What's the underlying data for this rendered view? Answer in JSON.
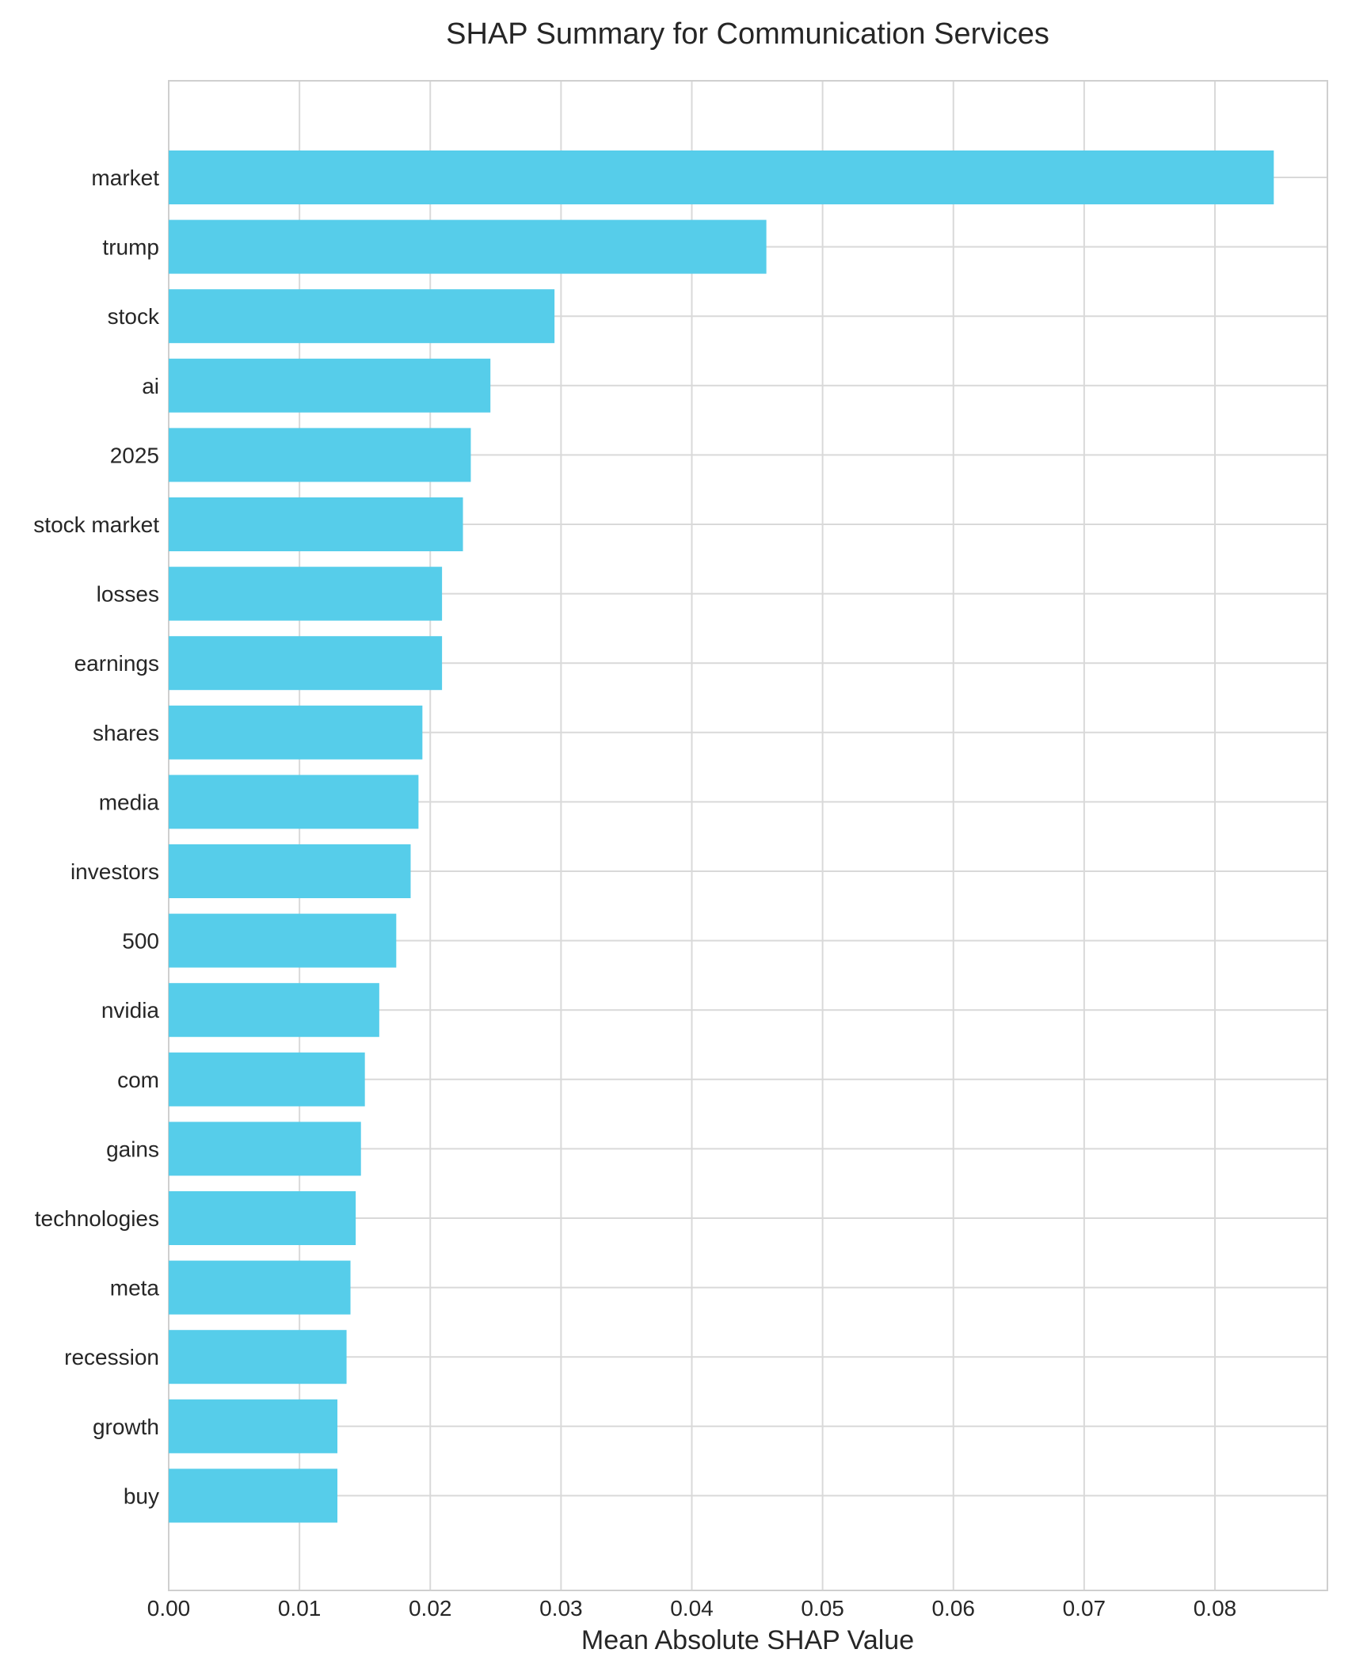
{
  "chart_data": {
    "type": "bar",
    "orientation": "horizontal",
    "title": "SHAP Summary for Communication Services",
    "xlabel": "Mean Absolute SHAP Value",
    "ylabel": "",
    "xlim": [
      0,
      0.0886
    ],
    "xticks": [
      "0.00",
      "0.01",
      "0.02",
      "0.03",
      "0.04",
      "0.05",
      "0.06",
      "0.07",
      "0.08"
    ],
    "grid": true,
    "bar_color": "#56cdea",
    "categories": [
      "market",
      "trump",
      "stock",
      "ai",
      "2025",
      "stock market",
      "losses",
      "earnings",
      "shares",
      "media",
      "investors",
      "500",
      "nvidia",
      "com",
      "gains",
      "technologies",
      "meta",
      "recession",
      "growth",
      "buy"
    ],
    "values": [
      0.0845,
      0.0457,
      0.0295,
      0.0246,
      0.0231,
      0.0225,
      0.0209,
      0.0209,
      0.0194,
      0.0191,
      0.0185,
      0.0174,
      0.0161,
      0.015,
      0.0147,
      0.0143,
      0.0139,
      0.0136,
      0.0129,
      0.0129
    ]
  }
}
